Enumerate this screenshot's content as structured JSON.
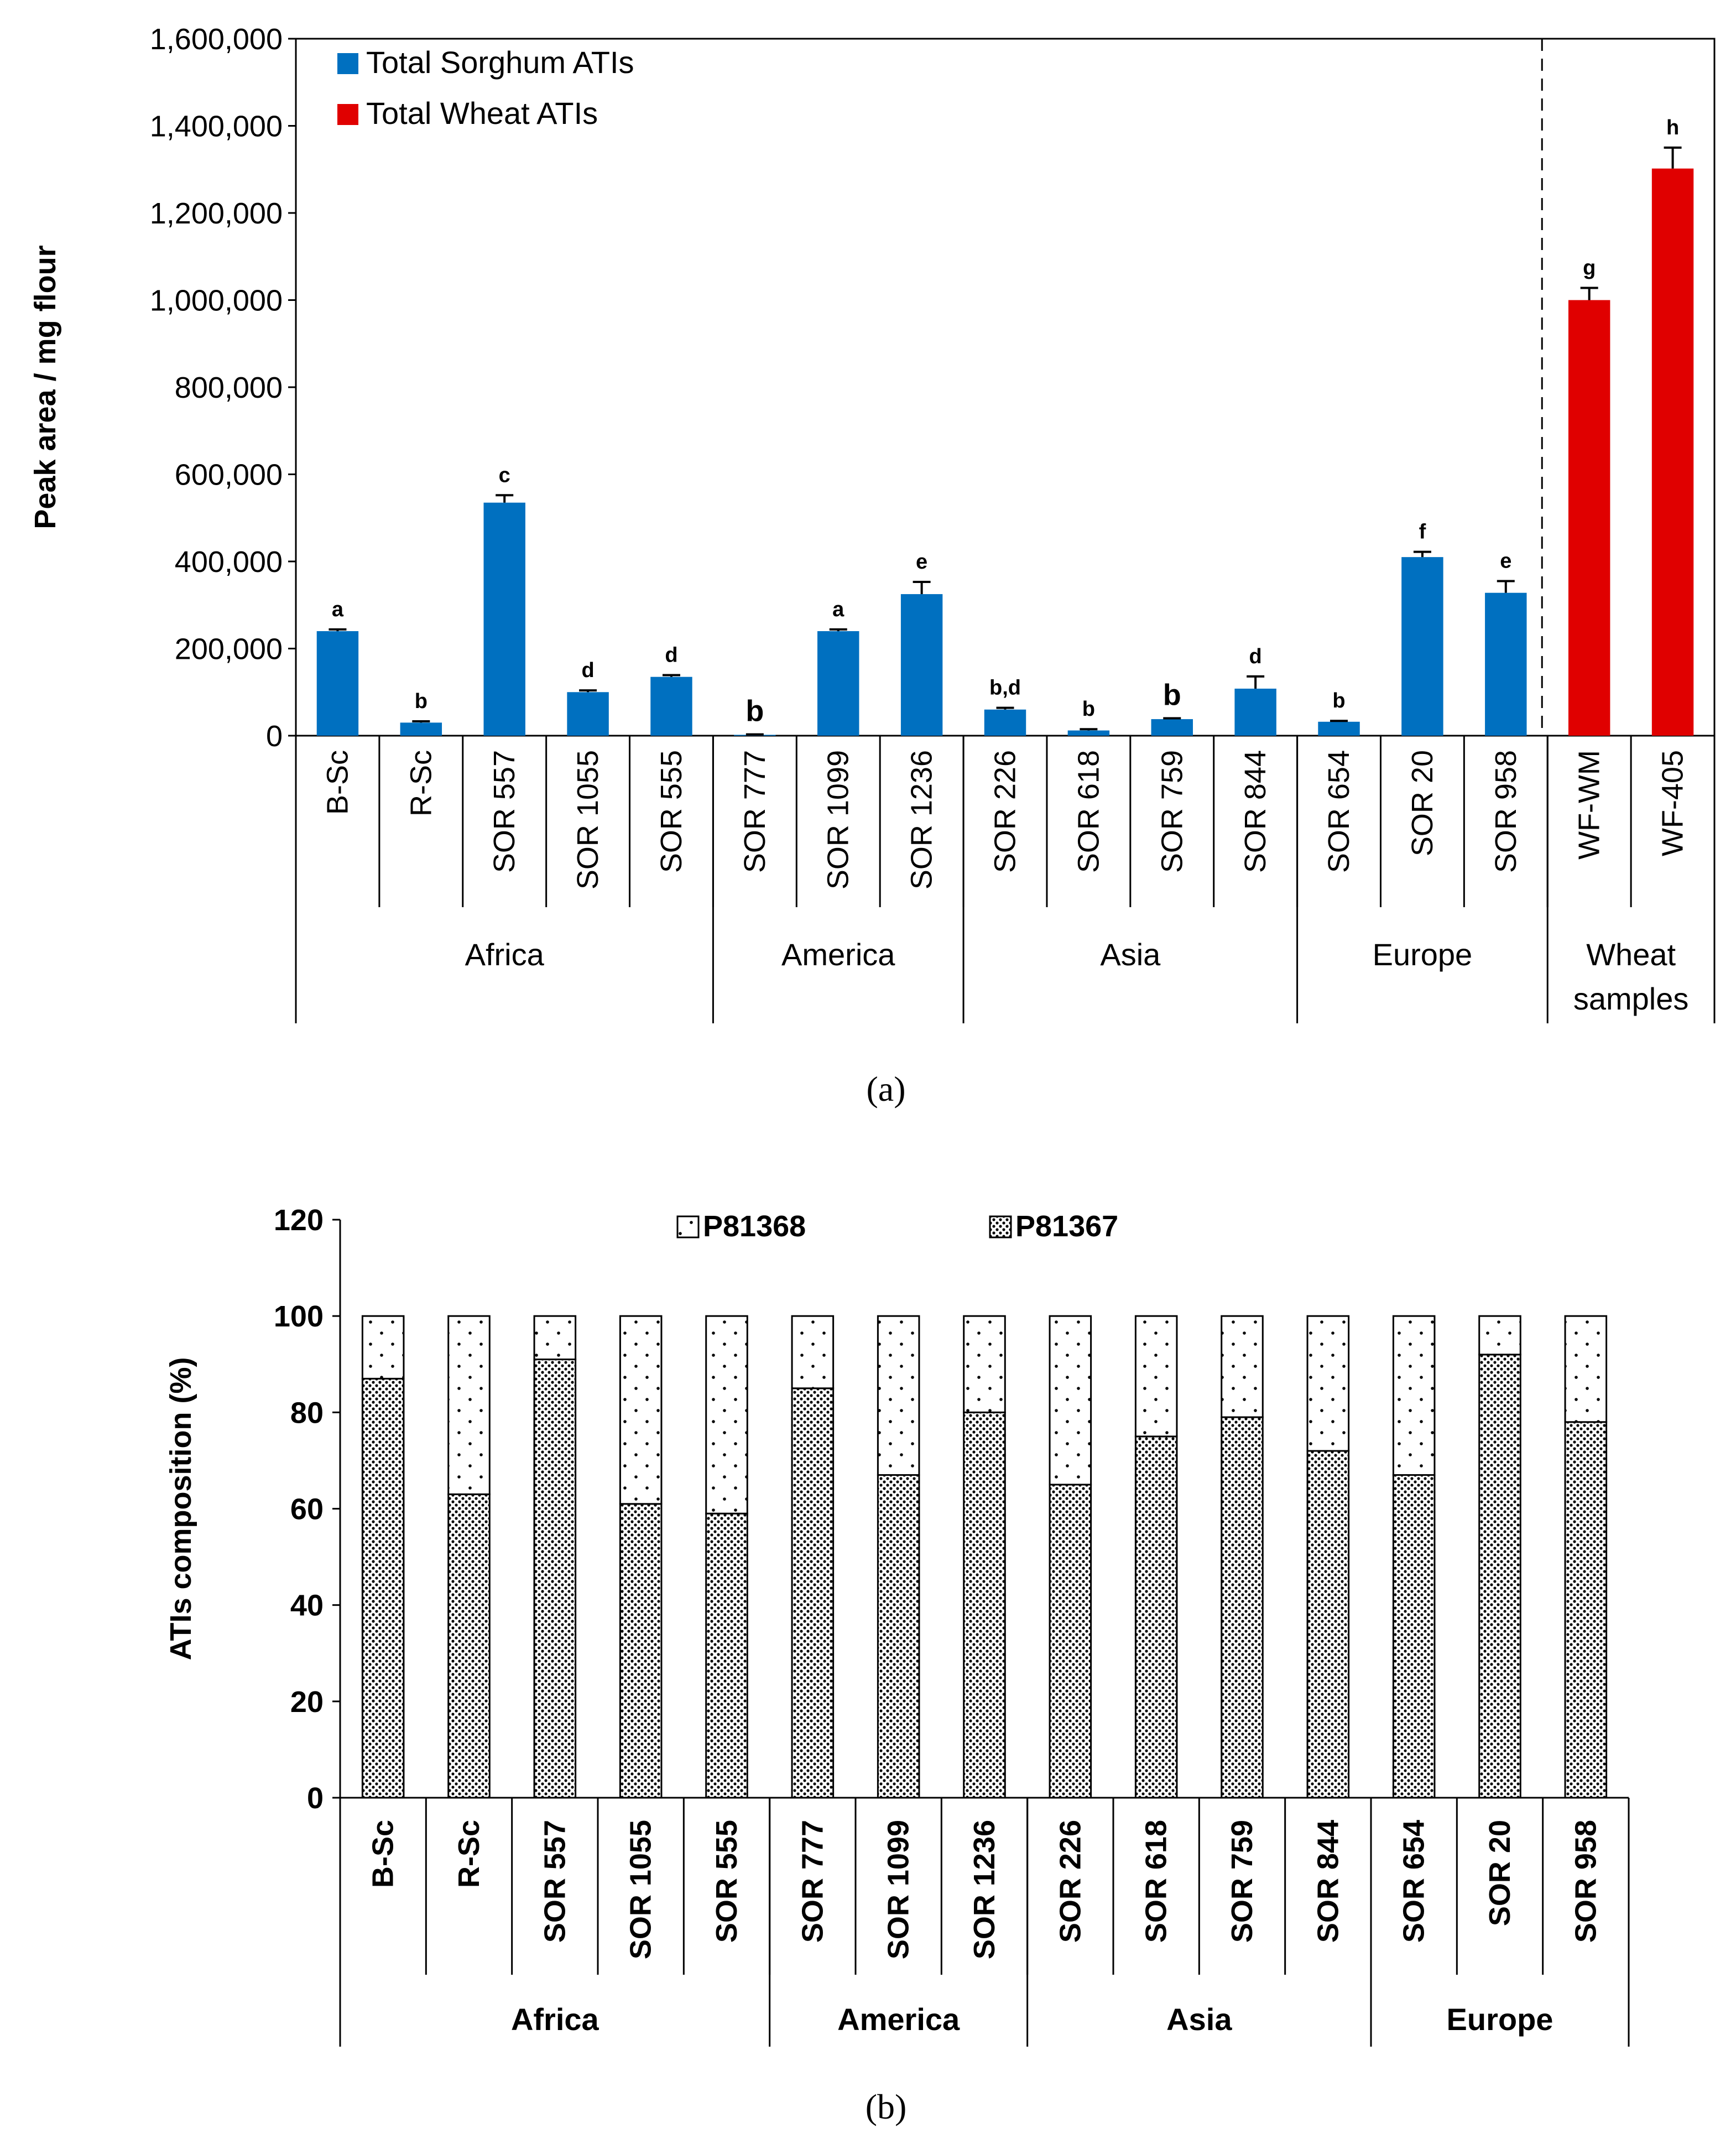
{
  "chart_data": [
    {
      "type": "bar",
      "title": "",
      "ylabel": "Peak area / mg flour",
      "xlabel": "",
      "ylim": [
        0,
        1600000
      ],
      "yticks": [
        "0",
        "200,000",
        "400,000",
        "600,000",
        "800,000",
        "1,000,000",
        "1,200,000",
        "1,400,000",
        "1,600,000"
      ],
      "ytick_values": [
        0,
        200000,
        400000,
        600000,
        800000,
        1000000,
        1200000,
        1400000,
        1600000
      ],
      "legend": [
        {
          "label": "Total Sorghum ATIs",
          "color": "#0070C0"
        },
        {
          "label": "Total Wheat ATIs",
          "color": "#E00000"
        }
      ],
      "legend_position": "top-left",
      "categories": [
        "B-Sc",
        "R-Sc",
        "SOR 557",
        "SOR 1055",
        "SOR 555",
        "SOR 777",
        "SOR 1099",
        "SOR 1236",
        "SOR 226",
        "SOR 618",
        "SOR 759",
        "SOR 844",
        "SOR 654",
        "SOR 20",
        "SOR 958",
        "WF-WM",
        "WF-405"
      ],
      "series_index": [
        0,
        0,
        0,
        0,
        0,
        0,
        0,
        0,
        0,
        0,
        0,
        0,
        0,
        0,
        0,
        1,
        1
      ],
      "values": [
        240000,
        30000,
        535000,
        100000,
        135000,
        2000,
        240000,
        325000,
        60000,
        12000,
        38000,
        108000,
        32000,
        410000,
        328000,
        1000000,
        1302000
      ],
      "errors": [
        4000,
        3000,
        17000,
        4000,
        4000,
        1000,
        4000,
        28000,
        4000,
        3000,
        2000,
        28000,
        2000,
        12000,
        27000,
        28000,
        48000
      ],
      "letters": [
        "a",
        "b",
        "c",
        "d",
        "d",
        "b",
        "a",
        "e",
        "b,d",
        "b",
        "b",
        "d",
        "b",
        "f",
        "e",
        "g",
        "h"
      ],
      "large_letter_indices": [
        5,
        10
      ],
      "groups": [
        {
          "label": "Africa",
          "start": 0,
          "count": 5
        },
        {
          "label": "America",
          "start": 5,
          "count": 3
        },
        {
          "label": "Asia",
          "start": 8,
          "count": 4
        },
        {
          "label": "Europe",
          "start": 12,
          "count": 3
        },
        {
          "label": "Wheat\nsamples",
          "start": 15,
          "count": 2
        }
      ],
      "separator_after_index": 14,
      "caption": "(a)"
    },
    {
      "type": "stacked_bar",
      "title": "",
      "ylabel": "ATIs composition (%)",
      "ylim": [
        0,
        120
      ],
      "yticks": [
        "0",
        "20",
        "40",
        "60",
        "80",
        "100",
        "120"
      ],
      "ytick_values": [
        0,
        20,
        40,
        60,
        80,
        100,
        120
      ],
      "legend_position": "top-center",
      "categories": [
        "B-Sc",
        "R-Sc",
        "SOR 557",
        "SOR 1055",
        "SOR 555",
        "SOR 777",
        "SOR 1099",
        "SOR 1236",
        "SOR 226",
        "SOR 618",
        "SOR 759",
        "SOR 844",
        "SOR 654",
        "SOR 20",
        "SOR 958"
      ],
      "series": [
        {
          "name": "P81367",
          "pattern": "dense-dots",
          "values": [
            87,
            63,
            91,
            61,
            59,
            85,
            67,
            80,
            65,
            75,
            79,
            72,
            67,
            92,
            78
          ]
        },
        {
          "name": "P81368",
          "pattern": "sparse-dots",
          "values": [
            13,
            37,
            9,
            39,
            41,
            15,
            33,
            20,
            35,
            25,
            21,
            28,
            33,
            8,
            22
          ]
        }
      ],
      "legend_order": [
        "P81368",
        "P81367"
      ],
      "groups": [
        {
          "label": "Africa",
          "start": 0,
          "count": 5
        },
        {
          "label": "America",
          "start": 5,
          "count": 3
        },
        {
          "label": "Asia",
          "start": 8,
          "count": 4
        },
        {
          "label": "Europe",
          "start": 12,
          "count": 3
        }
      ],
      "caption": "(b)"
    }
  ]
}
